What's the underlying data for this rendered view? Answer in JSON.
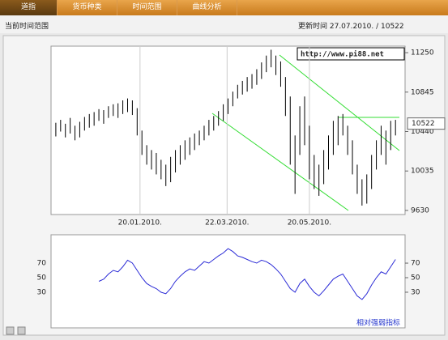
{
  "tabs": [
    "道指",
    "货币种类",
    "时间范围",
    "曲线分析"
  ],
  "range_label": "当前时间范围",
  "update_label": "更新时间 27.07.2010. / 10522",
  "chart_data": [
    {
      "type": "range",
      "watermark": "http://www.pi88.net",
      "color": "#000000",
      "last_value": 10522,
      "high": [
        10530,
        10560,
        10520,
        10580,
        10500,
        10540,
        10590,
        10620,
        10640,
        10670,
        10660,
        10700,
        10720,
        10730,
        10760,
        10780,
        10760,
        10680,
        10450,
        10300,
        10250,
        10220,
        10150,
        10100,
        10180,
        10250,
        10300,
        10350,
        10380,
        10420,
        10450,
        10500,
        10560,
        10600,
        10650,
        10720,
        10780,
        10850,
        10920,
        10960,
        11000,
        11030,
        11080,
        11150,
        11220,
        11280,
        11220,
        11160,
        11000,
        10800,
        10400,
        10700,
        10800,
        10500,
        10200,
        10100,
        10250,
        10400,
        10550,
        10600,
        10620,
        10500,
        10350,
        10100,
        9950,
        10000,
        10200,
        10350,
        10500,
        10450,
        10550,
        10560
      ],
      "low": [
        10390,
        10440,
        10380,
        10420,
        10350,
        10380,
        10450,
        10480,
        10500,
        10550,
        10520,
        10580,
        10600,
        10580,
        10620,
        10640,
        10610,
        10400,
        10200,
        10100,
        10050,
        10000,
        9950,
        9880,
        9920,
        10020,
        10100,
        10150,
        10200,
        10250,
        10300,
        10350,
        10400,
        10450,
        10500,
        10550,
        10620,
        10700,
        10780,
        10820,
        10850,
        10880,
        10920,
        10980,
        11050,
        11100,
        11020,
        10900,
        10600,
        10100,
        9800,
        10200,
        10300,
        9950,
        9850,
        9780,
        9900,
        10050,
        10200,
        10300,
        10400,
        10200,
        10000,
        9800,
        9680,
        9700,
        9850,
        10050,
        10200,
        10100,
        10250,
        10400
      ],
      "xlim": [
        -1,
        73
      ],
      "xticks": [
        {
          "value": 17.6,
          "label": "20.01.2010."
        },
        {
          "value": 35.8,
          "label": "22.03.2010."
        },
        {
          "value": 53,
          "label": "20.05.2010."
        }
      ],
      "ylim": [
        9588,
        11317
      ],
      "yticks": [
        11250,
        10845,
        10440,
        10035,
        9630
      ]
    },
    {
      "type": "line",
      "title": "相对强弱指标",
      "color": "#2b2bd6",
      "values": [
        null,
        null,
        null,
        null,
        null,
        null,
        null,
        null,
        null,
        45,
        48,
        55,
        60,
        58,
        65,
        74,
        70,
        60,
        50,
        42,
        38,
        35,
        30,
        28,
        35,
        45,
        52,
        58,
        62,
        60,
        66,
        72,
        70,
        75,
        80,
        84,
        90,
        86,
        80,
        78,
        75,
        72,
        70,
        74,
        72,
        68,
        62,
        55,
        45,
        35,
        30,
        42,
        48,
        38,
        30,
        25,
        32,
        40,
        48,
        52,
        55,
        45,
        35,
        25,
        20,
        28,
        40,
        50,
        58,
        55,
        65,
        75
      ],
      "xlim": [
        -1,
        73
      ],
      "ylim": [
        -19,
        109
      ],
      "yticks": [
        70,
        50,
        30
      ]
    }
  ]
}
